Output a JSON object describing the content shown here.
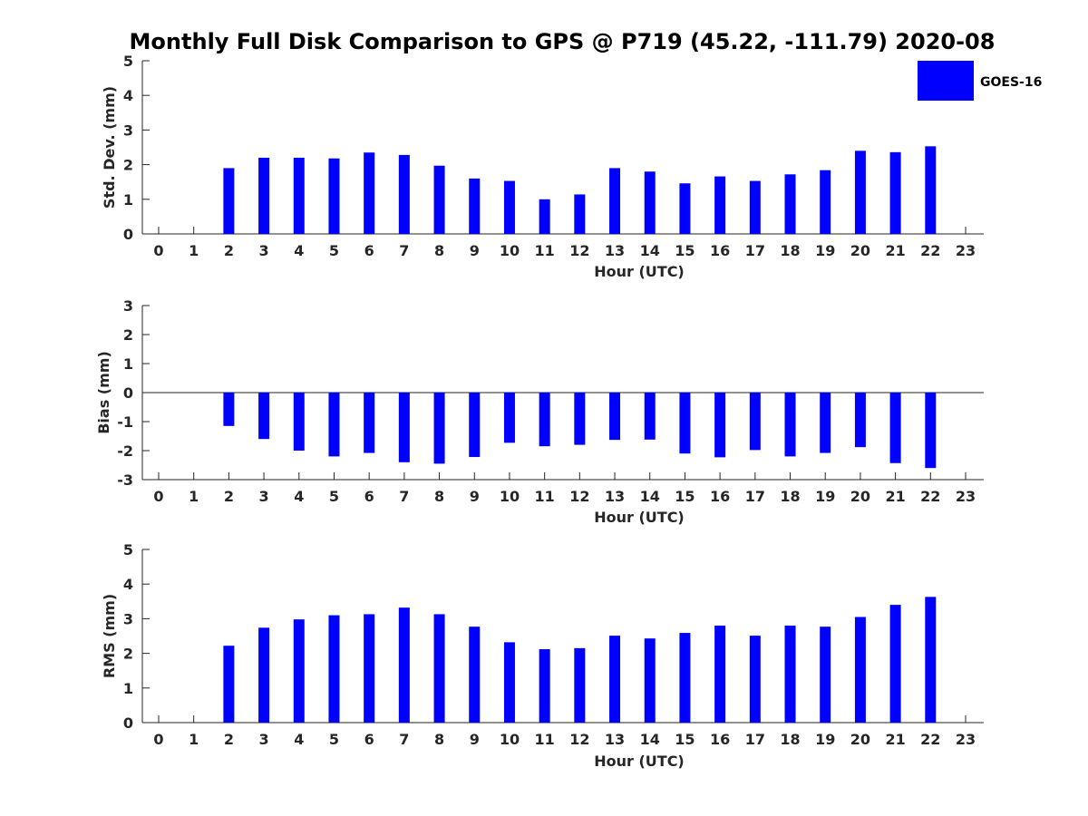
{
  "chart_data": {
    "title": "Monthly Full Disk Comparison to GPS @ P719 (45.22, -111.79) 2020-08",
    "type": "bar",
    "legend": {
      "label": "GOES-16",
      "color": "#0000ff",
      "placement": "top-right"
    },
    "categories": [
      "0",
      "1",
      "2",
      "3",
      "4",
      "5",
      "6",
      "7",
      "8",
      "9",
      "10",
      "11",
      "12",
      "13",
      "14",
      "15",
      "16",
      "17",
      "18",
      "19",
      "20",
      "21",
      "22",
      "23"
    ],
    "panels": [
      {
        "id": "std",
        "type": "bar",
        "xlabel": "Hour (UTC)",
        "ylabel": "Std. Dev. (mm)",
        "ylim": [
          0,
          5
        ],
        "yticks": [
          "0",
          "1",
          "2",
          "3",
          "4",
          "5"
        ],
        "series": [
          {
            "name": "GOES-16",
            "color": "#0000ff",
            "values": [
              null,
              null,
              1.9,
              2.2,
              2.2,
              2.18,
              2.35,
              2.28,
              1.97,
              1.6,
              1.53,
              1.0,
              1.14,
              1.9,
              1.8,
              1.46,
              1.66,
              1.53,
              1.72,
              1.84,
              2.4,
              2.36,
              2.53,
              null
            ]
          }
        ]
      },
      {
        "id": "bias",
        "type": "bar",
        "xlabel": "Hour (UTC)",
        "ylabel": "Bias (mm)",
        "ylim": [
          -3,
          3
        ],
        "yticks": [
          "-3",
          "-2",
          "-1",
          "0",
          "1",
          "2",
          "3"
        ],
        "zero_line": true,
        "series": [
          {
            "name": "GOES-16",
            "color": "#0000ff",
            "values": [
              null,
              null,
              -1.15,
              -1.6,
              -2.0,
              -2.2,
              -2.08,
              -2.4,
              -2.45,
              -2.22,
              -1.73,
              -1.85,
              -1.8,
              -1.63,
              -1.62,
              -2.1,
              -2.23,
              -1.98,
              -2.2,
              -2.08,
              -1.88,
              -2.43,
              -2.6,
              null
            ]
          }
        ]
      },
      {
        "id": "rms",
        "type": "bar",
        "xlabel": "Hour (UTC)",
        "ylabel": "RMS (mm)",
        "ylim": [
          0,
          5
        ],
        "yticks": [
          "0",
          "1",
          "2",
          "3",
          "4",
          "5"
        ],
        "series": [
          {
            "name": "GOES-16",
            "color": "#0000ff",
            "values": [
              null,
              null,
              2.22,
              2.74,
              2.98,
              3.1,
              3.13,
              3.32,
              3.13,
              2.77,
              2.32,
              2.12,
              2.15,
              2.51,
              2.43,
              2.59,
              2.8,
              2.51,
              2.8,
              2.77,
              3.05,
              3.4,
              3.63,
              null
            ]
          }
        ]
      }
    ]
  }
}
